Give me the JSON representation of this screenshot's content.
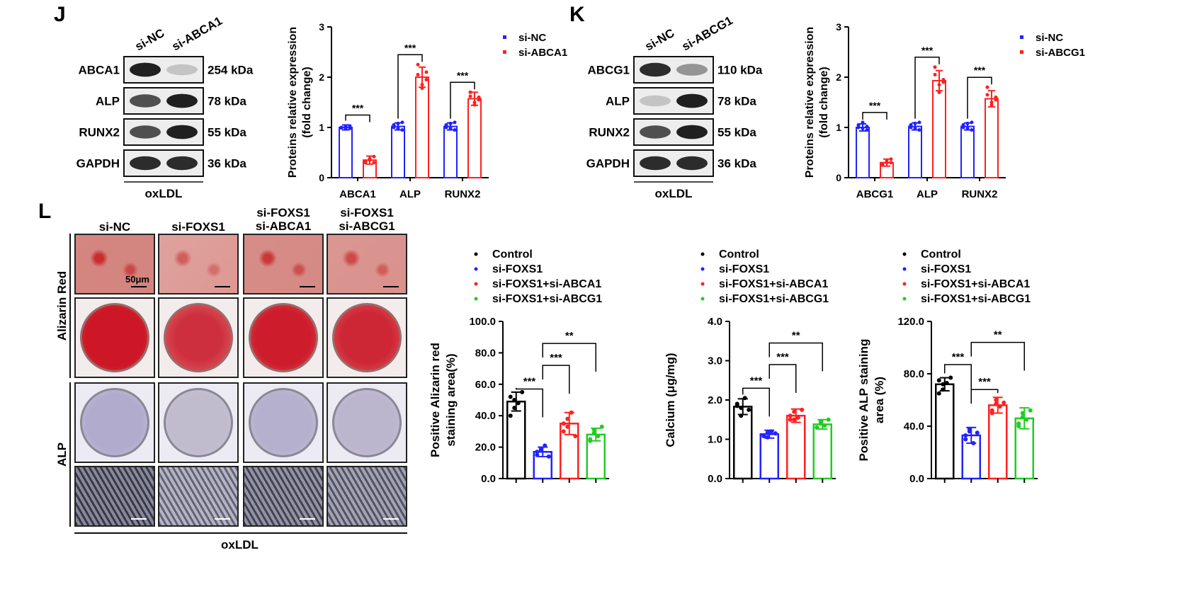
{
  "panels": {
    "J": {
      "letter": "J",
      "blot": {
        "lanes": [
          "si-NC",
          "si-ABCA1"
        ],
        "rows": [
          {
            "protein": "ABCA1",
            "kda": "254 kDa",
            "intensity": [
              0.95,
              0.25
            ]
          },
          {
            "protein": "ALP",
            "kda": "78 kDa",
            "intensity": [
              0.75,
              0.95
            ]
          },
          {
            "protein": "RUNX2",
            "kda": "55 kDa",
            "intensity": [
              0.75,
              0.95
            ]
          },
          {
            "protein": "GAPDH",
            "kda": "36 kDa",
            "intensity": [
              0.9,
              0.9
            ]
          }
        ],
        "treatment": "oxLDL"
      }
    },
    "K": {
      "letter": "K",
      "blot": {
        "lanes": [
          "si-NC",
          "si-ABCG1"
        ],
        "rows": [
          {
            "protein": "ABCG1",
            "kda": "110 kDa",
            "intensity": [
              0.9,
              0.45
            ]
          },
          {
            "protein": "ALP",
            "kda": "78 kDa",
            "intensity": [
              0.25,
              0.95
            ]
          },
          {
            "protein": "RUNX2",
            "kda": "55 kDa",
            "intensity": [
              0.75,
              0.95
            ]
          },
          {
            "protein": "GAPDH",
            "kda": "36 kDa",
            "intensity": [
              0.9,
              0.9
            ]
          }
        ],
        "treatment": "oxLDL"
      }
    },
    "L": {
      "letter": "L",
      "columns": [
        "si-NC",
        "si-FOXS1",
        "si-FOXS1\nsi-ABCA1",
        "si-FOXS1\nsi-ABCG1"
      ],
      "row_labels": {
        "alizarin": "Alizarin Red",
        "alp": "ALP"
      },
      "scale_bar": "50μm",
      "treatment": "oxLDL"
    }
  },
  "chart_data": [
    {
      "type": "bar",
      "panel": "J",
      "categories": [
        "ABCA1",
        "ALP",
        "RUNX2"
      ],
      "series": [
        {
          "name": "si-NC",
          "color": "#2222ff",
          "values": [
            1.0,
            1.02,
            1.02
          ],
          "sd": [
            0.05,
            0.07,
            0.07
          ]
        },
        {
          "name": "si-ABCA1",
          "color": "#ff2020",
          "values": [
            0.35,
            2.0,
            1.57
          ],
          "sd": [
            0.08,
            0.2,
            0.13
          ]
        }
      ],
      "points": [
        [
          [
            1.0,
            0.97,
            1.03,
            0.99,
            1.02,
            0.98
          ],
          [
            0.3,
            0.35,
            0.42,
            0.33,
            0.38,
            0.3
          ]
        ],
        [
          [
            1.0,
            1.08,
            0.95,
            1.05,
            0.98,
            1.1
          ],
          [
            2.25,
            1.78,
            1.95,
            2.05,
            1.85,
            2.1
          ]
        ],
        [
          [
            1.0,
            1.08,
            0.95,
            1.05,
            0.98,
            1.1
          ],
          [
            1.62,
            1.45,
            1.55,
            1.7,
            1.5,
            1.6
          ]
        ]
      ],
      "significance": [
        {
          "category": "ABCA1",
          "label": "***"
        },
        {
          "category": "ALP",
          "label": "***"
        },
        {
          "category": "RUNX2",
          "label": "***"
        }
      ],
      "ylabel": "Proteins relative expression\n(fold change)",
      "ylim": [
        0,
        3
      ],
      "yticks": [
        {
          "v": 0,
          "t": "0"
        },
        {
          "v": 1,
          "t": "1"
        },
        {
          "v": 2,
          "t": "2"
        },
        {
          "v": 3,
          "t": "3"
        }
      ],
      "legend": "top-right"
    },
    {
      "type": "bar",
      "panel": "K",
      "categories": [
        "ABCG1",
        "ALP",
        "RUNX2"
      ],
      "series": [
        {
          "name": "si-NC",
          "color": "#2222ff",
          "values": [
            1.0,
            1.02,
            1.02
          ],
          "sd": [
            0.07,
            0.07,
            0.07
          ]
        },
        {
          "name": "si-ABCG1",
          "color": "#ff2020",
          "values": [
            0.3,
            1.93,
            1.57
          ],
          "sd": [
            0.07,
            0.2,
            0.16
          ]
        }
      ],
      "points": [
        [
          [
            1.0,
            1.1,
            0.95,
            1.05,
            0.98,
            1.02
          ],
          [
            0.25,
            0.3,
            0.37,
            0.28,
            0.33,
            0.3
          ]
        ],
        [
          [
            1.0,
            1.08,
            0.95,
            1.05,
            0.98,
            1.1
          ],
          [
            2.2,
            1.7,
            1.9,
            2.05,
            1.85,
            1.95
          ]
        ],
        [
          [
            1.0,
            1.08,
            0.95,
            1.05,
            0.98,
            1.1
          ],
          [
            1.8,
            1.45,
            1.55,
            1.65,
            1.5,
            1.6
          ]
        ]
      ],
      "significance": [
        {
          "category": "ABCG1",
          "label": "***"
        },
        {
          "category": "ALP",
          "label": "***"
        },
        {
          "category": "RUNX2",
          "label": "***"
        }
      ],
      "ylabel": "Proteins relative expression\n(fold change)",
      "ylim": [
        0,
        3
      ],
      "yticks": [
        {
          "v": 0,
          "t": "0"
        },
        {
          "v": 1,
          "t": "1"
        },
        {
          "v": 2,
          "t": "2"
        },
        {
          "v": 3,
          "t": "3"
        }
      ],
      "legend": "top-right"
    },
    {
      "type": "bar",
      "panel": "L1",
      "categories": [
        "Control",
        "si-FOXS1",
        "si-FOXS1+si-ABCA1",
        "si-FOXS1+si-ABCG1"
      ],
      "colors": [
        "#000000",
        "#2222ff",
        "#ff2020",
        "#22cc22"
      ],
      "values": [
        49,
        17,
        35,
        28
      ],
      "sd": [
        6,
        3,
        7,
        4
      ],
      "points": [
        [
          52,
          45,
          48,
          55,
          40,
          50
        ],
        [
          15,
          18,
          21,
          14,
          17,
          19
        ],
        [
          30,
          38,
          42,
          27,
          35,
          33
        ],
        [
          24,
          31,
          27,
          33,
          25,
          29
        ]
      ],
      "brackets": [
        {
          "from": 0,
          "to": 1,
          "level": 57,
          "label": "***"
        },
        {
          "from": 1,
          "to": 2,
          "level": 72,
          "label": "***"
        },
        {
          "from": 1,
          "to": 3,
          "level": 86,
          "label": "**"
        }
      ],
      "ylabel": "Positive Alizarin red\nstaining area(%)",
      "ylim": [
        0,
        100
      ],
      "yticks": [
        {
          "v": 0,
          "t": "0.0"
        },
        {
          "v": 20,
          "t": "20.0"
        },
        {
          "v": 40,
          "t": "40.0"
        },
        {
          "v": 60,
          "t": "60.0"
        },
        {
          "v": 80,
          "t": "80.0"
        },
        {
          "v": 100,
          "t": "100.0"
        }
      ],
      "legend": "top"
    },
    {
      "type": "bar",
      "panel": "L2",
      "categories": [
        "Control",
        "si-FOXS1",
        "si-FOXS1+si-ABCA1",
        "si-FOXS1+si-ABCG1"
      ],
      "colors": [
        "#000000",
        "#2222ff",
        "#ff2020",
        "#22cc22"
      ],
      "values": [
        1.83,
        1.13,
        1.6,
        1.38
      ],
      "sd": [
        0.2,
        0.1,
        0.17,
        0.12
      ],
      "points": [
        [
          1.9,
          1.6,
          2.05,
          1.75,
          1.85,
          1.8
        ],
        [
          1.1,
          1.05,
          1.2,
          1.15,
          1.08,
          1.17
        ],
        [
          1.5,
          1.7,
          1.55,
          1.75,
          1.6,
          1.5
        ],
        [
          1.3,
          1.45,
          1.35,
          1.5,
          1.3,
          1.4
        ]
      ],
      "brackets": [
        {
          "from": 0,
          "to": 1,
          "level": 2.3,
          "label": "***"
        },
        {
          "from": 1,
          "to": 2,
          "level": 2.9,
          "label": "***"
        },
        {
          "from": 1,
          "to": 3,
          "level": 3.45,
          "label": "**"
        }
      ],
      "ylabel": "Calcium (μg/mg)",
      "ylim": [
        0,
        4
      ],
      "yticks": [
        {
          "v": 0,
          "t": "0.0"
        },
        {
          "v": 1,
          "t": "1.0"
        },
        {
          "v": 2,
          "t": "2.0"
        },
        {
          "v": 3,
          "t": "3.0"
        },
        {
          "v": 4,
          "t": "4.0"
        }
      ],
      "legend": "top"
    },
    {
      "type": "bar",
      "panel": "L3",
      "categories": [
        "Control",
        "si-FOXS1",
        "si-FOXS1+si-ABCA1",
        "si-FOXS1+si-ABCG1"
      ],
      "colors": [
        "#000000",
        "#2222ff",
        "#ff2020",
        "#22cc22"
      ],
      "values": [
        72,
        33,
        56,
        46
      ],
      "sd": [
        5,
        6,
        6,
        8
      ],
      "points": [
        [
          75,
          68,
          73,
          77,
          65,
          72
        ],
        [
          30,
          38,
          27,
          35,
          33,
          36
        ],
        [
          52,
          60,
          55,
          58,
          50,
          57
        ],
        [
          40,
          50,
          45,
          52,
          42,
          47
        ]
      ],
      "brackets": [
        {
          "from": 0,
          "to": 1,
          "level": 87,
          "label": "***"
        },
        {
          "from": 1,
          "to": 2,
          "level": 68,
          "label": "***"
        },
        {
          "from": 1,
          "to": 3,
          "level": 104,
          "label": "**"
        }
      ],
      "ylabel": "Positive ALP staining\narea (%)",
      "ylim": [
        0,
        120
      ],
      "yticks": [
        {
          "v": 0,
          "t": "0.0"
        },
        {
          "v": 40,
          "t": "40.0"
        },
        {
          "v": 80,
          "t": "80.0"
        },
        {
          "v": 120,
          "t": "120.0"
        }
      ],
      "legend": "top"
    }
  ]
}
